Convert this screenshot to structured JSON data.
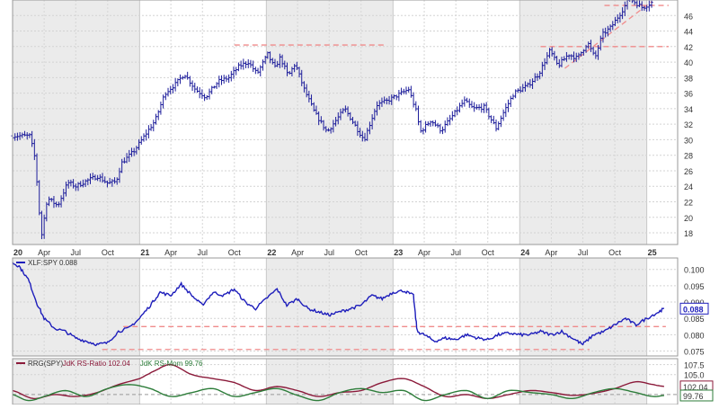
{
  "chart_data": [
    {
      "type": "bar",
      "style": "ohlc",
      "panel": "price",
      "title": "",
      "ylim": [
        16.5,
        48
      ],
      "y_ticks": [
        18,
        20,
        22,
        24,
        26,
        28,
        30,
        32,
        34,
        36,
        38,
        40,
        42,
        44,
        46
      ],
      "x_start": "2020-01-01",
      "x_end": "2025-03-31",
      "x_ticks": [
        {
          "date": "2020-01-01",
          "label": "20",
          "bold": true
        },
        {
          "date": "2020-04-01",
          "label": "Apr",
          "bold": false
        },
        {
          "date": "2020-07-01",
          "label": "Jul",
          "bold": false
        },
        {
          "date": "2020-10-01",
          "label": "Oct",
          "bold": false
        },
        {
          "date": "2021-01-01",
          "label": "21",
          "bold": true
        },
        {
          "date": "2021-04-01",
          "label": "Apr",
          "bold": false
        },
        {
          "date": "2021-07-01",
          "label": "Jul",
          "bold": false
        },
        {
          "date": "2021-10-01",
          "label": "Oct",
          "bold": false
        },
        {
          "date": "2022-01-01",
          "label": "22",
          "bold": true
        },
        {
          "date": "2022-04-01",
          "label": "Apr",
          "bold": false
        },
        {
          "date": "2022-07-01",
          "label": "Jul",
          "bold": false
        },
        {
          "date": "2022-10-01",
          "label": "Oct",
          "bold": false
        },
        {
          "date": "2023-01-01",
          "label": "23",
          "bold": true
        },
        {
          "date": "2023-04-01",
          "label": "Apr",
          "bold": false
        },
        {
          "date": "2023-07-01",
          "label": "Jul",
          "bold": false
        },
        {
          "date": "2023-10-01",
          "label": "Oct",
          "bold": false
        },
        {
          "date": "2024-01-01",
          "label": "24",
          "bold": true
        },
        {
          "date": "2024-04-01",
          "label": "Apr",
          "bold": false
        },
        {
          "date": "2024-07-01",
          "label": "Jul",
          "bold": false
        },
        {
          "date": "2024-10-01",
          "label": "Oct",
          "bold": false
        },
        {
          "date": "2025-01-01",
          "label": "25",
          "bold": true
        }
      ],
      "series_path": [
        [
          "2020-01-01",
          30.5
        ],
        [
          "2020-02-20",
          30.5
        ],
        [
          "2020-03-06",
          27.5
        ],
        [
          "2020-03-20",
          19.5
        ],
        [
          "2020-03-25",
          17.8
        ],
        [
          "2020-04-10",
          22.5
        ],
        [
          "2020-05-10",
          21.5
        ],
        [
          "2020-06-08",
          24.5
        ],
        [
          "2020-07-01",
          24.0
        ],
        [
          "2020-08-01",
          24.7
        ],
        [
          "2020-09-01",
          25.3
        ],
        [
          "2020-10-01",
          24.4
        ],
        [
          "2020-10-25",
          24.6
        ],
        [
          "2020-11-10",
          27.0
        ],
        [
          "2020-12-15",
          28.5
        ],
        [
          "2021-01-15",
          30.5
        ],
        [
          "2021-02-15",
          32.5
        ],
        [
          "2021-03-15",
          36.0
        ],
        [
          "2021-04-15",
          37.2
        ],
        [
          "2021-05-10",
          38.5
        ],
        [
          "2021-06-10",
          36.5
        ],
        [
          "2021-07-10",
          35.5
        ],
        [
          "2021-08-15",
          37.5
        ],
        [
          "2021-09-15",
          38.0
        ],
        [
          "2021-10-15",
          39.5
        ],
        [
          "2021-11-10",
          40.0
        ],
        [
          "2021-12-05",
          38.5
        ],
        [
          "2022-01-05",
          41.0
        ],
        [
          "2022-01-25",
          39.2
        ],
        [
          "2022-02-10",
          40.6
        ],
        [
          "2022-03-05",
          38.2
        ],
        [
          "2022-03-25",
          39.8
        ],
        [
          "2022-04-20",
          36.5
        ],
        [
          "2022-05-20",
          33.5
        ],
        [
          "2022-06-25",
          31.0
        ],
        [
          "2022-08-15",
          34.0
        ],
        [
          "2022-09-25",
          31.0
        ],
        [
          "2022-10-10",
          30.0
        ],
        [
          "2022-11-15",
          34.5
        ],
        [
          "2022-12-15",
          35.0
        ],
        [
          "2023-01-25",
          36.0
        ],
        [
          "2023-02-15",
          36.5
        ],
        [
          "2023-03-10",
          33.5
        ],
        [
          "2023-03-20",
          31.0
        ],
        [
          "2023-04-20",
          32.5
        ],
        [
          "2023-05-20",
          31.2
        ],
        [
          "2023-06-20",
          33.0
        ],
        [
          "2023-07-25",
          35.0
        ],
        [
          "2023-08-20",
          34.0
        ],
        [
          "2023-09-20",
          34.2
        ],
        [
          "2023-10-25",
          31.5
        ],
        [
          "2023-11-15",
          33.5
        ],
        [
          "2023-12-15",
          36.0
        ],
        [
          "2024-01-25",
          37.0
        ],
        [
          "2024-02-25",
          38.5
        ],
        [
          "2024-03-28",
          41.5
        ],
        [
          "2024-04-20",
          39.5
        ],
        [
          "2024-05-20",
          41.0
        ],
        [
          "2024-06-15",
          40.5
        ],
        [
          "2024-07-15",
          42.5
        ],
        [
          "2024-08-05",
          40.5
        ],
        [
          "2024-08-25",
          43.5
        ],
        [
          "2024-09-20",
          44.5
        ],
        [
          "2024-10-20",
          46.5
        ],
        [
          "2024-11-12",
          48.2
        ],
        [
          "2024-12-20",
          47.0
        ],
        [
          "2025-01-20",
          47.8
        ]
      ],
      "resistance_lines": [
        {
          "y": 42.2,
          "x_from": "2021-10-01",
          "x_to": "2022-12-15"
        },
        {
          "y": 42.0,
          "x_from": "2024-03-01",
          "x_to": "2025-03-05"
        },
        {
          "y": 47.3,
          "x_from": "2024-09-01",
          "x_to": "2025-03-05"
        }
      ],
      "trend_line": {
        "x1": "2024-05-10",
        "y1": 39.2,
        "x2": "2025-01-15",
        "y2": 47.8
      }
    },
    {
      "type": "line",
      "panel": "relative-strength",
      "legend": "XLF:SPY 0.088",
      "last_value": "0.088",
      "ylim": [
        0.0735,
        0.1035
      ],
      "y_ticks": [
        "0.100",
        "0.095",
        "0.090",
        "0.085",
        "0.080",
        "0.075"
      ],
      "series": [
        {
          "name": "XLF:SPY",
          "color": "#1d1dbb",
          "points": [
            [
              "2020-01-01",
              0.102
            ],
            [
              "2020-01-20",
              0.101
            ],
            [
              "2020-02-15",
              0.097
            ],
            [
              "2020-03-10",
              0.09
            ],
            [
              "2020-04-01",
              0.085
            ],
            [
              "2020-05-01",
              0.082
            ],
            [
              "2020-06-01",
              0.081
            ],
            [
              "2020-07-01",
              0.079
            ],
            [
              "2020-08-01",
              0.078
            ],
            [
              "2020-09-01",
              0.077
            ],
            [
              "2020-10-01",
              0.0775
            ],
            [
              "2020-11-01",
              0.081
            ],
            [
              "2020-12-01",
              0.082
            ],
            [
              "2021-01-01",
              0.085
            ],
            [
              "2021-02-01",
              0.089
            ],
            [
              "2021-03-01",
              0.093
            ],
            [
              "2021-04-01",
              0.092
            ],
            [
              "2021-05-01",
              0.0955
            ],
            [
              "2021-06-01",
              0.092
            ],
            [
              "2021-07-01",
              0.089
            ],
            [
              "2021-08-01",
              0.093
            ],
            [
              "2021-09-01",
              0.092
            ],
            [
              "2021-10-01",
              0.094
            ],
            [
              "2021-11-01",
              0.09
            ],
            [
              "2021-12-01",
              0.088
            ],
            [
              "2022-01-01",
              0.091
            ],
            [
              "2022-02-01",
              0.094
            ],
            [
              "2022-03-01",
              0.089
            ],
            [
              "2022-04-01",
              0.091
            ],
            [
              "2022-05-01",
              0.088
            ],
            [
              "2022-06-01",
              0.087
            ],
            [
              "2022-07-01",
              0.086
            ],
            [
              "2022-08-01",
              0.087
            ],
            [
              "2022-09-01",
              0.088
            ],
            [
              "2022-10-01",
              0.089
            ],
            [
              "2022-11-01",
              0.092
            ],
            [
              "2022-12-01",
              0.091
            ],
            [
              "2023-01-01",
              0.093
            ],
            [
              "2023-02-01",
              0.0935
            ],
            [
              "2023-03-01",
              0.092
            ],
            [
              "2023-03-12",
              0.081
            ],
            [
              "2023-04-01",
              0.08
            ],
            [
              "2023-05-01",
              0.078
            ],
            [
              "2023-06-01",
              0.079
            ],
            [
              "2023-07-01",
              0.0785
            ],
            [
              "2023-08-01",
              0.08
            ],
            [
              "2023-09-01",
              0.079
            ],
            [
              "2023-10-01",
              0.0785
            ],
            [
              "2023-11-01",
              0.08
            ],
            [
              "2023-12-01",
              0.0805
            ],
            [
              "2024-01-01",
              0.08
            ],
            [
              "2024-02-01",
              0.08
            ],
            [
              "2024-03-01",
              0.081
            ],
            [
              "2024-04-01",
              0.08
            ],
            [
              "2024-05-01",
              0.081
            ],
            [
              "2024-06-01",
              0.079
            ],
            [
              "2024-07-01",
              0.077
            ],
            [
              "2024-08-01",
              0.08
            ],
            [
              "2024-09-01",
              0.081
            ],
            [
              "2024-10-01",
              0.083
            ],
            [
              "2024-11-01",
              0.085
            ],
            [
              "2024-12-01",
              0.083
            ],
            [
              "2025-01-01",
              0.085
            ],
            [
              "2025-02-05",
              0.087
            ],
            [
              "2025-02-20",
              0.088
            ]
          ]
        }
      ],
      "reference_lines": [
        {
          "y": 0.0825,
          "x_from": "2020-11-15",
          "x_to": "2025-02-25"
        },
        {
          "y": 0.0755,
          "x_from": "2020-09-15",
          "x_to": "2024-07-20"
        }
      ]
    },
    {
      "type": "line",
      "panel": "rrg",
      "legend_parts": [
        {
          "text": "RRG(SPY) ",
          "color": "#333333"
        },
        {
          "text": "JdK RS-Ratio 102.04 ",
          "color": "#8b1a3a"
        },
        {
          "text": "JdK RS-Mom 99.76",
          "color": "#2d7d3a"
        }
      ],
      "ylim": [
        97.5,
        109
      ],
      "y_ticks": [
        "107.5",
        "105.0"
      ],
      "value_labels": [
        {
          "text": "102.04",
          "value": 102.04,
          "color": "#8b1a3a"
        },
        {
          "text": "99.76",
          "value": 99.76,
          "color": "#2d7d3a"
        }
      ],
      "baseline": 100,
      "series": [
        {
          "name": "JdK RS-Ratio",
          "color": "#8b1a3a",
          "points": [
            [
              "2020-01-01",
              101.0
            ],
            [
              "2020-03-01",
              99.0
            ],
            [
              "2020-05-01",
              100.0
            ],
            [
              "2020-07-01",
              99.5
            ],
            [
              "2020-09-01",
              100.5
            ],
            [
              "2020-11-01",
              102.5
            ],
            [
              "2021-01-01",
              104.0
            ],
            [
              "2021-02-15",
              106.0
            ],
            [
              "2021-04-01",
              107.5
            ],
            [
              "2021-06-01",
              105.0
            ],
            [
              "2021-08-01",
              104.0
            ],
            [
              "2021-10-01",
              103.0
            ],
            [
              "2021-12-01",
              101.0
            ],
            [
              "2022-02-01",
              102.0
            ],
            [
              "2022-04-01",
              101.0
            ],
            [
              "2022-06-01",
              99.5
            ],
            [
              "2022-08-01",
              100.5
            ],
            [
              "2022-10-01",
              101.0
            ],
            [
              "2022-12-01",
              103.0
            ],
            [
              "2023-02-01",
              104.0
            ],
            [
              "2023-04-01",
              102.0
            ],
            [
              "2023-06-01",
              99.5
            ],
            [
              "2023-08-01",
              100.0
            ],
            [
              "2023-10-01",
              99.0
            ],
            [
              "2023-12-01",
              100.0
            ],
            [
              "2024-02-01",
              101.0
            ],
            [
              "2024-04-01",
              100.5
            ],
            [
              "2024-06-01",
              99.8
            ],
            [
              "2024-08-01",
              100.3
            ],
            [
              "2024-10-01",
              101.5
            ],
            [
              "2024-12-01",
              103.2
            ],
            [
              "2025-01-20",
              102.5
            ],
            [
              "2025-02-20",
              102.04
            ]
          ]
        },
        {
          "name": "JdK RS-Mom",
          "color": "#2d7d3a",
          "points": [
            [
              "2020-01-01",
              100.0
            ],
            [
              "2020-02-15",
              98.5
            ],
            [
              "2020-04-01",
              99.5
            ],
            [
              "2020-06-01",
              101.0
            ],
            [
              "2020-08-01",
              99.5
            ],
            [
              "2020-10-01",
              101.5
            ],
            [
              "2020-12-01",
              102.5
            ],
            [
              "2021-02-01",
              101.5
            ],
            [
              "2021-04-01",
              99.5
            ],
            [
              "2021-06-01",
              100.5
            ],
            [
              "2021-08-01",
              101.5
            ],
            [
              "2021-10-01",
              99.5
            ],
            [
              "2021-12-01",
              100.5
            ],
            [
              "2022-02-01",
              101.5
            ],
            [
              "2022-04-01",
              99.8
            ],
            [
              "2022-06-01",
              98.5
            ],
            [
              "2022-08-01",
              100.5
            ],
            [
              "2022-10-01",
              101.5
            ],
            [
              "2022-12-01",
              100.5
            ],
            [
              "2023-02-01",
              101.0
            ],
            [
              "2023-04-01",
              98.5
            ],
            [
              "2023-06-01",
              100.0
            ],
            [
              "2023-08-01",
              101.0
            ],
            [
              "2023-10-01",
              99.0
            ],
            [
              "2023-12-01",
              101.0
            ],
            [
              "2024-02-01",
              100.5
            ],
            [
              "2024-04-01",
              100.0
            ],
            [
              "2024-06-01",
              99.0
            ],
            [
              "2024-08-01",
              100.5
            ],
            [
              "2024-10-01",
              101.5
            ],
            [
              "2024-12-01",
              100.5
            ],
            [
              "2025-01-20",
              99.5
            ],
            [
              "2025-02-20",
              99.76
            ]
          ]
        }
      ]
    }
  ]
}
